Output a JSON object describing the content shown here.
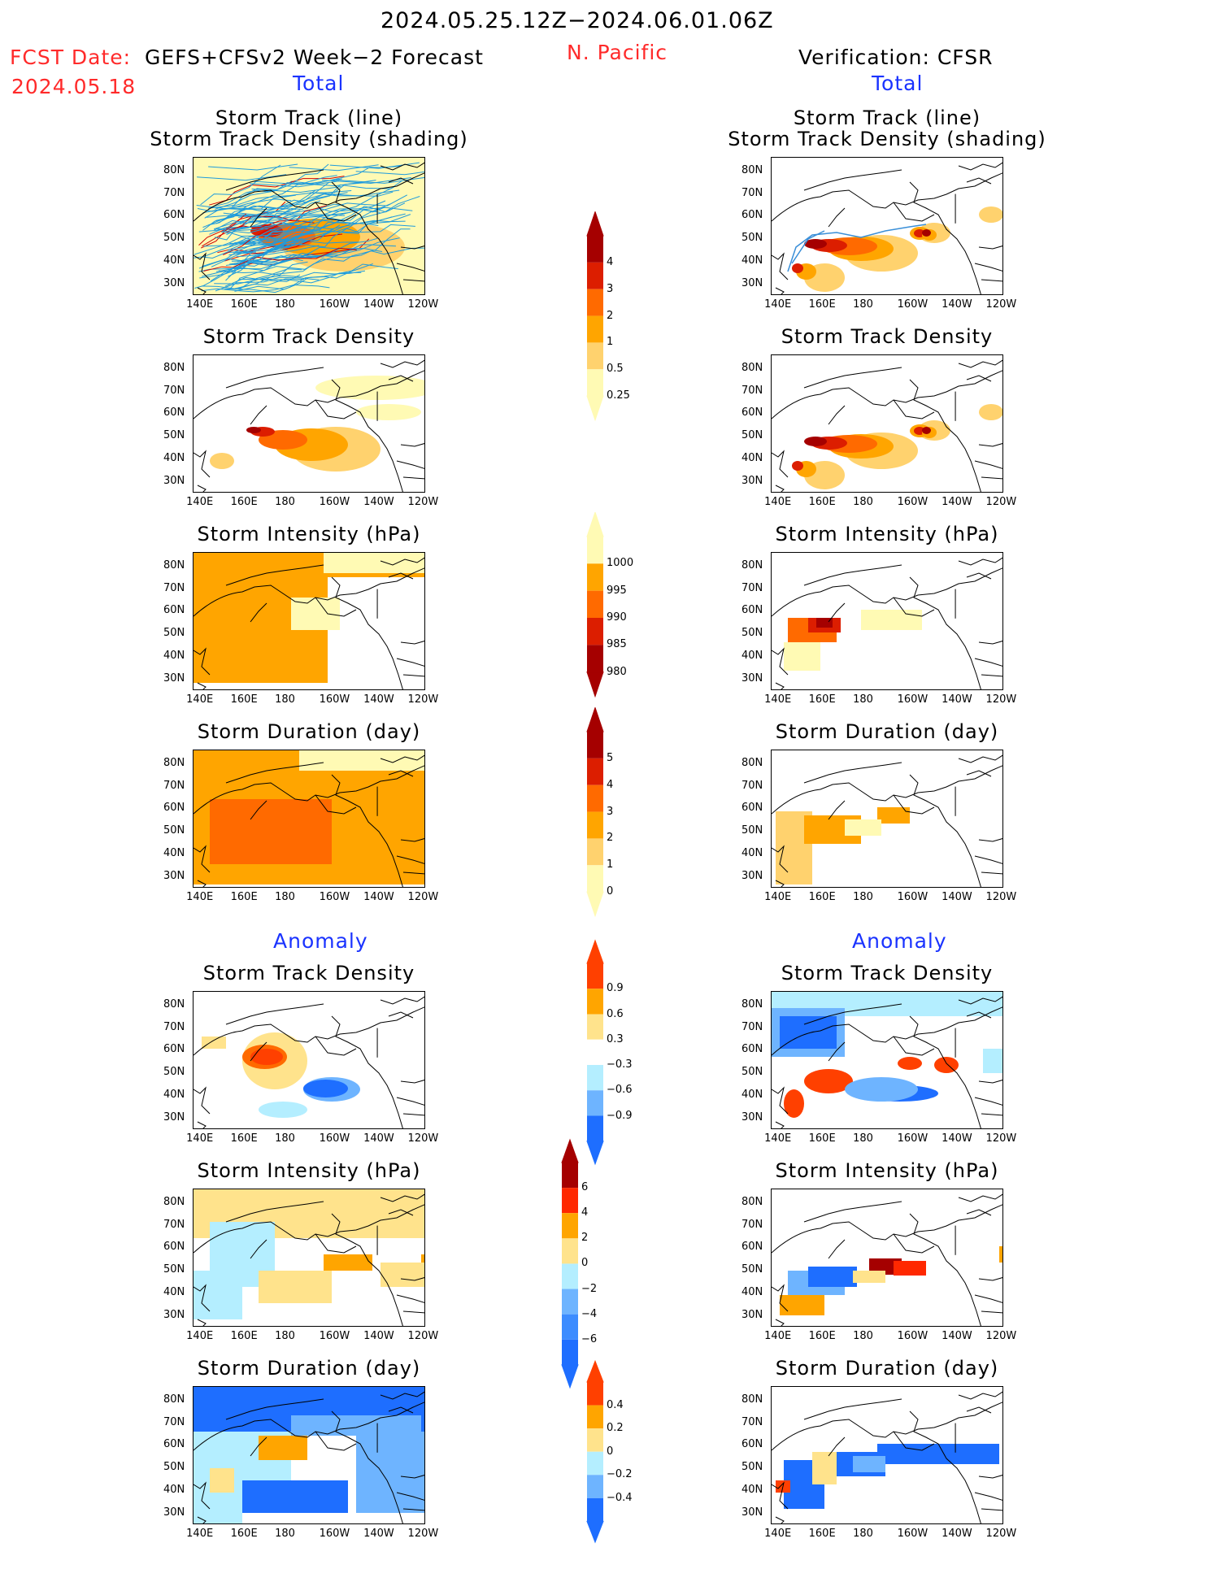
{
  "header": {
    "date_range": "2024.05.25.12Z−2024.06.01.06Z",
    "fcst_label": "FCST Date:",
    "fcst_model": "GEFS+CFSv2 Week−2 Forecast",
    "fcst_date": "2024.05.18",
    "region": "N. Pacific",
    "verification": "Verification: CFSR",
    "total_left": "Total",
    "total_right": "Total",
    "anomaly_left": "Anomaly",
    "anomaly_right": "Anomaly"
  },
  "axes": {
    "lat_labels": [
      "80N",
      "70N",
      "60N",
      "50N",
      "40N",
      "30N"
    ],
    "lon_labels": [
      "140E",
      "160E",
      "180",
      "160W",
      "140W",
      "120W"
    ]
  },
  "panels": [
    {
      "id": "p1",
      "title1": "Storm Track (line)",
      "title2": "Storm Track Density (shading)"
    },
    {
      "id": "p2",
      "title1": "Storm Track Density"
    },
    {
      "id": "p3",
      "title1": "Storm Intensity (hPa)"
    },
    {
      "id": "p4",
      "title1": "Storm Duration (day)"
    },
    {
      "id": "p5",
      "title1": "Storm Track Density"
    },
    {
      "id": "p6",
      "title1": "Storm Intensity (hPa)"
    },
    {
      "id": "p7",
      "title1": "Storm Duration (day)"
    }
  ],
  "colorbars": {
    "density_total": {
      "labels": [
        "4",
        "3",
        "2",
        "1",
        "0.5",
        "0.25"
      ],
      "colors": [
        "#a50000",
        "#dc1e00",
        "#ff6a00",
        "#ffa500",
        "#ffd26e",
        "#fffab4"
      ]
    },
    "intensity_total": {
      "labels": [
        "1000",
        "995",
        "990",
        "985",
        "980"
      ],
      "colors": [
        "#fffab4",
        "#ffa500",
        "#ff6a00",
        "#dc1e00",
        "#a50000"
      ]
    },
    "duration_total": {
      "labels": [
        "5",
        "4",
        "3",
        "2",
        "1",
        "0"
      ],
      "colors": [
        "#a50000",
        "#dc1e00",
        "#ff6a00",
        "#ffa500",
        "#ffd26e",
        "#fffab4"
      ]
    },
    "density_anom": {
      "labels": [
        "0.9",
        "0.6",
        "0.3",
        "−0.3",
        "−0.6",
        "−0.9"
      ],
      "colors": [
        "#ff4000",
        "#ffa500",
        "#ffe38c",
        "#ffffff",
        "#b4eeff",
        "#6eb4ff",
        "#1e6eff"
      ]
    },
    "intensity_anom": {
      "labels": [
        "6",
        "4",
        "2",
        "0",
        "−2",
        "−4",
        "−6"
      ],
      "colors": [
        "#a50000",
        "#ff2800",
        "#ffa500",
        "#ffe38c",
        "#b4eeff",
        "#6eb4ff",
        "#3c8cff",
        "#1e6eff"
      ]
    },
    "duration_anom": {
      "labels": [
        "0.4",
        "0.2",
        "0",
        "−0.2",
        "−0.4"
      ],
      "colors": [
        "#ff4000",
        "#ffa500",
        "#ffe38c",
        "#b4eeff",
        "#6eb4ff",
        "#1e6eff"
      ]
    }
  }
}
